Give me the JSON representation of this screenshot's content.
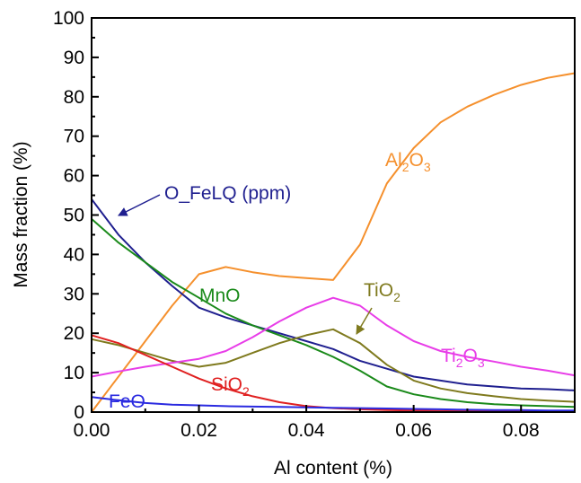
{
  "chart_data": {
    "type": "line",
    "xlabel": "Al content (%)",
    "ylabel": "Mass fraction (%)",
    "xlim": [
      0,
      0.09
    ],
    "ylim": [
      0,
      100
    ],
    "x_ticks": [
      "0.00",
      "0.02",
      "0.04",
      "0.06",
      "0.08"
    ],
    "y_ticks": [
      "0",
      "10",
      "20",
      "30",
      "40",
      "50",
      "60",
      "70",
      "80",
      "90",
      "100"
    ],
    "grid": false,
    "legend": "none (labels placed on curves)",
    "series": [
      {
        "name": "Al2O3",
        "label_main": "Al",
        "label_sub1": "2",
        "label_mid": "O",
        "label_sub2": "3",
        "color": "#f5902d",
        "x": [
          0,
          0.005,
          0.01,
          0.015,
          0.02,
          0.025,
          0.03,
          0.035,
          0.04,
          0.045,
          0.05,
          0.055,
          0.06,
          0.065,
          0.07,
          0.075,
          0.08,
          0.085,
          0.09
        ],
        "y": [
          0,
          9,
          18,
          27,
          35,
          36.8,
          35.5,
          34.5,
          34,
          33.5,
          42.5,
          58,
          67,
          73.5,
          77.5,
          80.5,
          83,
          84.8,
          86
        ]
      },
      {
        "name": "O_FeLQ (ppm)",
        "label_main": "O_FeLQ (ppm)",
        "color": "#1f1f8f",
        "x": [
          0,
          0.005,
          0.01,
          0.015,
          0.02,
          0.025,
          0.03,
          0.035,
          0.04,
          0.045,
          0.05,
          0.055,
          0.06,
          0.065,
          0.07,
          0.075,
          0.08,
          0.085,
          0.09
        ],
        "y": [
          54,
          45,
          38,
          32,
          26.5,
          24,
          22,
          20,
          18,
          16,
          13,
          11,
          9,
          8,
          7,
          6.5,
          6,
          5.8,
          5.5
        ]
      },
      {
        "name": "MnO",
        "label_main": "MnO",
        "color": "#1a8a1a",
        "x": [
          0,
          0.005,
          0.01,
          0.015,
          0.02,
          0.025,
          0.03,
          0.035,
          0.04,
          0.045,
          0.05,
          0.055,
          0.06,
          0.065,
          0.07,
          0.075,
          0.08,
          0.085,
          0.09
        ],
        "y": [
          49,
          43,
          38,
          33,
          29,
          25,
          22,
          19.5,
          17,
          14,
          10.5,
          6.5,
          4.5,
          3.3,
          2.5,
          2,
          1.7,
          1.5,
          1.3
        ]
      },
      {
        "name": "TiO2",
        "label_main": "TiO",
        "label_sub1": "2",
        "color": "#7f7a1e",
        "x": [
          0,
          0.005,
          0.01,
          0.015,
          0.02,
          0.025,
          0.03,
          0.035,
          0.04,
          0.045,
          0.05,
          0.055,
          0.06,
          0.065,
          0.07,
          0.075,
          0.08,
          0.085,
          0.09
        ],
        "y": [
          18.5,
          17,
          15,
          13,
          11.5,
          12.5,
          15,
          17.5,
          19.5,
          21,
          17.5,
          12,
          8,
          6,
          4.8,
          4,
          3.3,
          2.9,
          2.6
        ]
      },
      {
        "name": "Ti2O3",
        "label_main": "Ti",
        "label_sub1": "2",
        "label_mid": "O",
        "label_sub2": "3",
        "color": "#e83de8",
        "x": [
          0,
          0.005,
          0.01,
          0.015,
          0.02,
          0.025,
          0.03,
          0.035,
          0.04,
          0.045,
          0.05,
          0.055,
          0.06,
          0.065,
          0.07,
          0.075,
          0.08,
          0.085,
          0.09
        ],
        "y": [
          9,
          10.3,
          11.5,
          12.5,
          13.5,
          15.5,
          19,
          23,
          26.5,
          29,
          27,
          22,
          18,
          15.5,
          14,
          12.8,
          11.5,
          10.5,
          9.3
        ]
      },
      {
        "name": "SiO2",
        "label_main": "SiO",
        "label_sub1": "2",
        "color": "#e02020",
        "x": [
          0,
          0.005,
          0.01,
          0.015,
          0.02,
          0.025,
          0.03,
          0.035,
          0.04,
          0.045,
          0.05,
          0.055,
          0.06,
          0.065,
          0.07,
          0.075,
          0.08,
          0.085,
          0.09
        ],
        "y": [
          19.5,
          17.5,
          14.5,
          11.5,
          8.5,
          6,
          4,
          2.5,
          1.5,
          1,
          0.7,
          0.5,
          0.4,
          0.3,
          0.3,
          0.2,
          0.2,
          0.2,
          0.2
        ]
      },
      {
        "name": "FeO",
        "label_main": "FeO",
        "color": "#2a2ae0",
        "x": [
          0,
          0.005,
          0.01,
          0.015,
          0.02,
          0.025,
          0.03,
          0.035,
          0.04,
          0.045,
          0.05,
          0.055,
          0.06,
          0.065,
          0.07,
          0.075,
          0.08,
          0.085,
          0.09
        ],
        "y": [
          3.8,
          3,
          2.3,
          1.9,
          1.7,
          1.5,
          1.4,
          1.3,
          1.2,
          1.1,
          1,
          0.9,
          0.8,
          0.7,
          0.6,
          0.5,
          0.5,
          0.4,
          0.4
        ]
      }
    ]
  }
}
